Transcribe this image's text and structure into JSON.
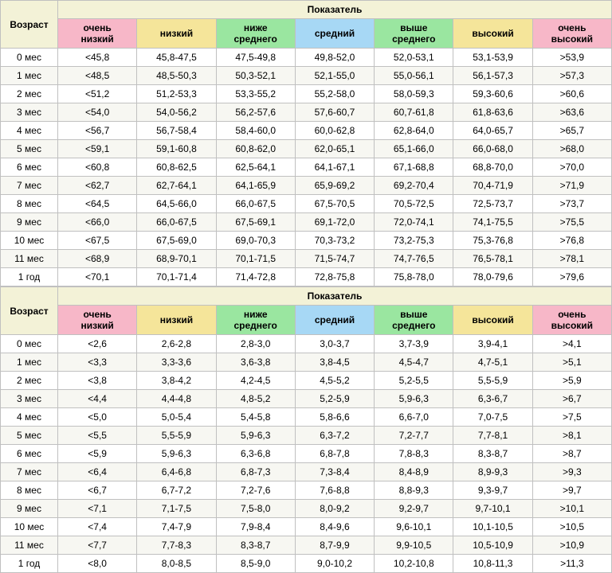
{
  "colors": {
    "age_header_bg": "#f3f2d7",
    "indicator_header_bg": "#f3f2d7",
    "very_low": "#f7b7c8",
    "low": "#f5e59a",
    "below_avg": "#9ae6a0",
    "avg": "#a7d8f5",
    "above_avg": "#9ae6a0",
    "high": "#f5e59a",
    "very_high": "#f7b7c8",
    "border": "#c0c0c0",
    "row_alt": "#f7f7f2"
  },
  "labels": {
    "age": "Возраст",
    "indicator": "Показатель",
    "very_low": "очень низкий",
    "low": "низкий",
    "below_avg": "ниже среднего",
    "avg": "средний",
    "above_avg": "выше среднего",
    "high": "высокий",
    "very_high": "очень высокий"
  },
  "tables": [
    {
      "rows": [
        {
          "age": "0 мес",
          "vl": "<45,8",
          "l": "45,8-47,5",
          "ba": "47,5-49,8",
          "a": "49,8-52,0",
          "aa": "52,0-53,1",
          "h": "53,1-53,9",
          "vh": ">53,9"
        },
        {
          "age": "1 мес",
          "vl": "<48,5",
          "l": "48,5-50,3",
          "ba": "50,3-52,1",
          "a": "52,1-55,0",
          "aa": "55,0-56,1",
          "h": "56,1-57,3",
          "vh": ">57,3"
        },
        {
          "age": "2 мес",
          "vl": "<51,2",
          "l": "51,2-53,3",
          "ba": "53,3-55,2",
          "a": "55,2-58,0",
          "aa": "58,0-59,3",
          "h": "59,3-60,6",
          "vh": ">60,6"
        },
        {
          "age": "3 мес",
          "vl": "<54,0",
          "l": "54,0-56,2",
          "ba": "56,2-57,6",
          "a": "57,6-60,7",
          "aa": "60,7-61,8",
          "h": "61,8-63,6",
          "vh": ">63,6"
        },
        {
          "age": "4 мес",
          "vl": "<56,7",
          "l": "56,7-58,4",
          "ba": "58,4-60,0",
          "a": "60,0-62,8",
          "aa": "62,8-64,0",
          "h": "64,0-65,7",
          "vh": ">65,7"
        },
        {
          "age": "5 мес",
          "vl": "<59,1",
          "l": "59,1-60,8",
          "ba": "60,8-62,0",
          "a": "62,0-65,1",
          "aa": "65,1-66,0",
          "h": "66,0-68,0",
          "vh": ">68,0"
        },
        {
          "age": "6 мес",
          "vl": "<60,8",
          "l": "60,8-62,5",
          "ba": "62,5-64,1",
          "a": "64,1-67,1",
          "aa": "67,1-68,8",
          "h": "68,8-70,0",
          "vh": ">70,0"
        },
        {
          "age": "7 мес",
          "vl": "<62,7",
          "l": "62,7-64,1",
          "ba": "64,1-65,9",
          "a": "65,9-69,2",
          "aa": "69,2-70,4",
          "h": "70,4-71,9",
          "vh": ">71,9"
        },
        {
          "age": "8 мес",
          "vl": "<64,5",
          "l": "64,5-66,0",
          "ba": "66,0-67,5",
          "a": "67,5-70,5",
          "aa": "70,5-72,5",
          "h": "72,5-73,7",
          "vh": ">73,7"
        },
        {
          "age": "9 мес",
          "vl": "<66,0",
          "l": "66,0-67,5",
          "ba": "67,5-69,1",
          "a": "69,1-72,0",
          "aa": "72,0-74,1",
          "h": "74,1-75,5",
          "vh": ">75,5"
        },
        {
          "age": "10 мес",
          "vl": "<67,5",
          "l": "67,5-69,0",
          "ba": "69,0-70,3",
          "a": "70,3-73,2",
          "aa": "73,2-75,3",
          "h": "75,3-76,8",
          "vh": ">76,8"
        },
        {
          "age": "11 мес",
          "vl": "<68,9",
          "l": "68,9-70,1",
          "ba": "70,1-71,5",
          "a": "71,5-74,7",
          "aa": "74,7-76,5",
          "h": "76,5-78,1",
          "vh": ">78,1"
        },
        {
          "age": "1 год",
          "vl": "<70,1",
          "l": "70,1-71,4",
          "ba": "71,4-72,8",
          "a": "72,8-75,8",
          "aa": "75,8-78,0",
          "h": "78,0-79,6",
          "vh": ">79,6"
        }
      ]
    },
    {
      "rows": [
        {
          "age": "0 мес",
          "vl": "<2,6",
          "l": "2,6-2,8",
          "ba": "2,8-3,0",
          "a": "3,0-3,7",
          "aa": "3,7-3,9",
          "h": "3,9-4,1",
          "vh": ">4,1"
        },
        {
          "age": "1 мес",
          "vl": "<3,3",
          "l": "3,3-3,6",
          "ba": "3,6-3,8",
          "a": "3,8-4,5",
          "aa": "4,5-4,7",
          "h": "4,7-5,1",
          "vh": ">5,1"
        },
        {
          "age": "2 мес",
          "vl": "<3,8",
          "l": "3,8-4,2",
          "ba": "4,2-4,5",
          "a": "4,5-5,2",
          "aa": "5,2-5,5",
          "h": "5,5-5,9",
          "vh": ">5,9"
        },
        {
          "age": "3 мес",
          "vl": "<4,4",
          "l": "4,4-4,8",
          "ba": "4,8-5,2",
          "a": "5,2-5,9",
          "aa": "5,9-6,3",
          "h": "6,3-6,7",
          "vh": ">6,7"
        },
        {
          "age": "4 мес",
          "vl": "<5,0",
          "l": "5,0-5,4",
          "ba": "5,4-5,8",
          "a": "5,8-6,6",
          "aa": "6,6-7,0",
          "h": "7,0-7,5",
          "vh": ">7,5"
        },
        {
          "age": "5 мес",
          "vl": "<5,5",
          "l": "5,5-5,9",
          "ba": "5,9-6,3",
          "a": "6,3-7,2",
          "aa": "7,2-7,7",
          "h": "7,7-8,1",
          "vh": ">8,1"
        },
        {
          "age": "6 мес",
          "vl": "<5,9",
          "l": "5,9-6,3",
          "ba": "6,3-6,8",
          "a": "6,8-7,8",
          "aa": "7,8-8,3",
          "h": "8,3-8,7",
          "vh": ">8,7"
        },
        {
          "age": "7 мес",
          "vl": "<6,4",
          "l": "6,4-6,8",
          "ba": "6,8-7,3",
          "a": "7,3-8,4",
          "aa": "8,4-8,9",
          "h": "8,9-9,3",
          "vh": ">9,3"
        },
        {
          "age": "8 мес",
          "vl": "<6,7",
          "l": "6,7-7,2",
          "ba": "7,2-7,6",
          "a": "7,6-8,8",
          "aa": "8,8-9,3",
          "h": "9,3-9,7",
          "vh": ">9,7"
        },
        {
          "age": "9 мес",
          "vl": "<7,1",
          "l": "7,1-7,5",
          "ba": "7,5-8,0",
          "a": "8,0-9,2",
          "aa": "9,2-9,7",
          "h": "9,7-10,1",
          "vh": ">10,1"
        },
        {
          "age": "10 мес",
          "vl": "<7,4",
          "l": "7,4-7,9",
          "ba": "7,9-8,4",
          "a": "8,4-9,6",
          "aa": "9,6-10,1",
          "h": "10,1-10,5",
          "vh": ">10,5"
        },
        {
          "age": "11 мес",
          "vl": "<7,7",
          "l": "7,7-8,3",
          "ba": "8,3-8,7",
          "a": "8,7-9,9",
          "aa": "9,9-10,5",
          "h": "10,5-10,9",
          "vh": ">10,9"
        },
        {
          "age": "1 год",
          "vl": "<8,0",
          "l": "8,0-8,5",
          "ba": "8,5-9,0",
          "a": "9,0-10,2",
          "aa": "10,2-10,8",
          "h": "10,8-11,3",
          "vh": ">11,3"
        }
      ]
    }
  ]
}
